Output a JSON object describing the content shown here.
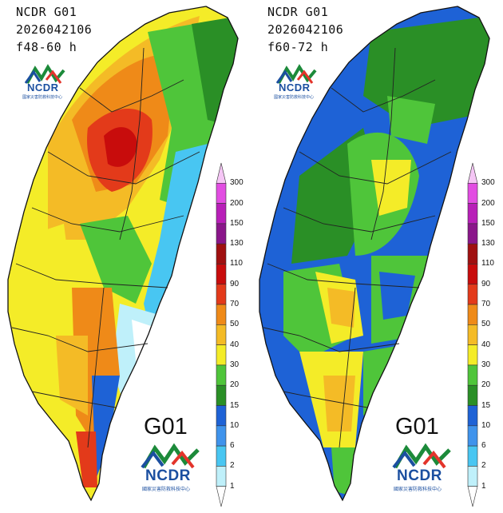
{
  "panels": [
    {
      "model": "NCDR G01",
      "init_time": "2026042106",
      "forecast_range": "f48-60 h",
      "logo_text": "NCDR",
      "logo_subtext": "國家災害防救科技中心",
      "model_label": "G01"
    },
    {
      "model": "NCDR G01",
      "init_time": "2026042106",
      "forecast_range": "f60-72 h",
      "logo_text": "NCDR",
      "logo_subtext": "國家災害防救科技中心",
      "model_label": "G01"
    }
  ],
  "colorbar": {
    "levels": [
      "300",
      "200",
      "150",
      "130",
      "110",
      "90",
      "70",
      "50",
      "40",
      "30",
      "20",
      "15",
      "10",
      "6",
      "2",
      "1"
    ],
    "colors": [
      "#f5c6f5",
      "#e24de2",
      "#b81fb8",
      "#8a168a",
      "#a01010",
      "#c80c0c",
      "#e33a1a",
      "#ef8a18",
      "#f4bb26",
      "#f4ec28",
      "#4fc53a",
      "#2a8f26",
      "#1e62d6",
      "#3f93ec",
      "#48c6f2",
      "#bff0fa",
      "#ffffff"
    ]
  }
}
